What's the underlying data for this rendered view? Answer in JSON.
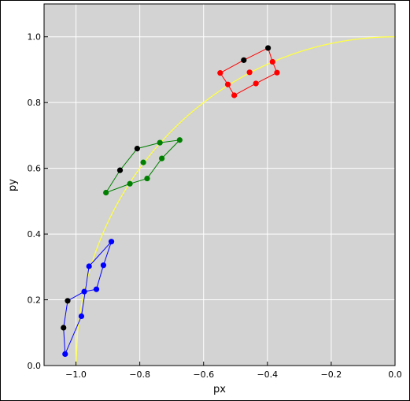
{
  "chart_data": {
    "type": "scatter",
    "title": "",
    "xlabel": "px",
    "ylabel": "py",
    "xlim": [
      -1.1,
      0.0
    ],
    "ylim": [
      0.0,
      1.1
    ],
    "xticks": [
      -1.0,
      -0.8,
      -0.6,
      -0.4,
      -0.2,
      0.0
    ],
    "xtick_labels": [
      "−1.0",
      "−0.8",
      "−0.6",
      "−0.4",
      "−0.2",
      "0.0"
    ],
    "yticks": [
      0.0,
      0.2,
      0.4,
      0.6,
      0.8,
      1.0
    ],
    "ytick_labels": [
      "0.0",
      "0.2",
      "0.4",
      "0.6",
      "0.8",
      "1.0"
    ],
    "grid": true,
    "background": "#d3d3d3",
    "curve": {
      "color": "#ffff44",
      "description": "quarter circle of radius 1 around (0,0)",
      "x_start": -1.0,
      "x_end": 0.0
    },
    "series": [
      {
        "color": "#0000ff",
        "points": [
          [
            -1.034,
            0.035
          ],
          [
            -0.983,
            0.15
          ],
          [
            -0.936,
            0.232
          ],
          [
            -0.974,
            0.225
          ],
          [
            -0.959,
            0.302
          ],
          [
            -0.914,
            0.305
          ],
          [
            -0.889,
            0.377
          ]
        ],
        "polygon": [
          [
            -1.034,
            0.035
          ],
          [
            -0.983,
            0.15
          ],
          [
            -0.959,
            0.302
          ],
          [
            -0.889,
            0.377
          ],
          [
            -0.914,
            0.305
          ],
          [
            -0.936,
            0.232
          ],
          [
            -0.974,
            0.225
          ],
          [
            -1.026,
            0.197
          ],
          [
            -1.039,
            0.115
          ],
          [
            -1.034,
            0.035
          ]
        ],
        "black_points": [
          [
            -1.039,
            0.115
          ],
          [
            -1.026,
            0.197
          ]
        ]
      },
      {
        "color": "#008000",
        "points": [
          [
            -0.906,
            0.526
          ],
          [
            -0.831,
            0.553
          ],
          [
            -0.777,
            0.569
          ],
          [
            -0.731,
            0.63
          ],
          [
            -0.675,
            0.686
          ],
          [
            -0.737,
            0.678
          ],
          [
            -0.789,
            0.618
          ]
        ],
        "polygon": [
          [
            -0.906,
            0.526
          ],
          [
            -0.831,
            0.553
          ],
          [
            -0.777,
            0.569
          ],
          [
            -0.731,
            0.63
          ],
          [
            -0.675,
            0.686
          ],
          [
            -0.737,
            0.678
          ],
          [
            -0.808,
            0.66
          ],
          [
            -0.862,
            0.594
          ],
          [
            -0.906,
            0.526
          ]
        ],
        "black_points": [
          [
            -0.862,
            0.594
          ],
          [
            -0.808,
            0.66
          ]
        ]
      },
      {
        "color": "#ff0000",
        "points": [
          [
            -0.548,
            0.89
          ],
          [
            -0.524,
            0.855
          ],
          [
            -0.504,
            0.822
          ],
          [
            -0.436,
            0.858
          ],
          [
            -0.37,
            0.891
          ],
          [
            -0.384,
            0.924
          ],
          [
            -0.456,
            0.892
          ]
        ],
        "polygon": [
          [
            -0.548,
            0.89
          ],
          [
            -0.524,
            0.855
          ],
          [
            -0.504,
            0.822
          ],
          [
            -0.436,
            0.858
          ],
          [
            -0.37,
            0.891
          ],
          [
            -0.384,
            0.924
          ],
          [
            -0.398,
            0.966
          ],
          [
            -0.474,
            0.929
          ],
          [
            -0.548,
            0.89
          ]
        ],
        "black_points": [
          [
            -0.398,
            0.966
          ],
          [
            -0.474,
            0.929
          ]
        ]
      }
    ]
  }
}
